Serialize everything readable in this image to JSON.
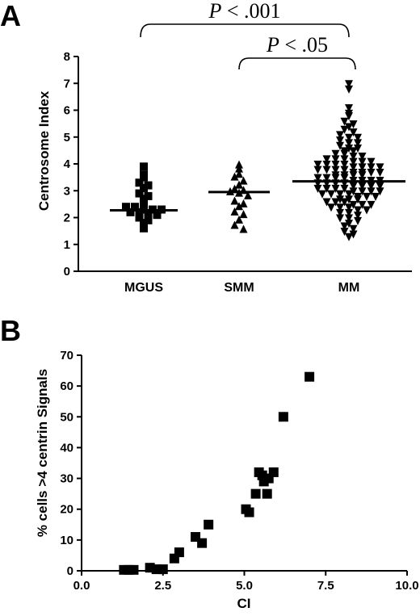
{
  "chart_data": [
    {
      "type": "scatter",
      "panel": "A",
      "xlabel": "",
      "ylabel": "Centrosome Index",
      "ylim": [
        0,
        8
      ],
      "yticks": [
        0,
        1,
        2,
        3,
        4,
        5,
        6,
        7,
        8
      ],
      "categories": [
        "MGUS",
        "SMM",
        "MM"
      ],
      "medians": [
        2.27,
        2.95,
        3.35
      ],
      "comparisons": [
        {
          "from": "MGUS",
          "to": "MM",
          "p_prefix": "P",
          "p_text": " < .001"
        },
        {
          "from": "SMM",
          "to": "MM",
          "p_prefix": "P",
          "p_text": " < .05"
        }
      ],
      "series": [
        {
          "category": "MGUS",
          "marker": "square",
          "values": [
            3.9,
            3.6,
            3.5,
            3.3,
            3.2,
            3.1,
            2.9,
            2.8,
            2.7,
            2.5,
            2.4,
            2.4,
            2.3,
            2.3,
            2.3,
            2.2,
            2.2,
            2.1,
            2.1,
            2.0,
            1.9,
            1.8,
            1.6
          ]
        },
        {
          "category": "SMM",
          "marker": "triangle-up",
          "values": [
            3.95,
            3.8,
            3.6,
            3.5,
            3.35,
            3.2,
            3.05,
            3.0,
            2.95,
            2.9,
            2.8,
            2.6,
            2.5,
            2.4,
            2.2,
            2.1,
            1.9,
            1.7,
            1.55
          ]
        },
        {
          "category": "MM",
          "marker": "triangle-down",
          "values": [
            7.0,
            6.8,
            6.1,
            5.9,
            5.8,
            5.6,
            5.5,
            5.4,
            5.3,
            5.2,
            5.1,
            5.0,
            5.0,
            4.9,
            4.8,
            4.8,
            4.7,
            4.6,
            4.6,
            4.5,
            4.5,
            4.4,
            4.4,
            4.3,
            4.3,
            4.2,
            4.2,
            4.2,
            4.1,
            4.1,
            4.1,
            4.0,
            4.0,
            4.0,
            4.0,
            3.9,
            3.9,
            3.9,
            3.9,
            3.8,
            3.8,
            3.8,
            3.8,
            3.7,
            3.7,
            3.7,
            3.7,
            3.6,
            3.6,
            3.6,
            3.6,
            3.5,
            3.5,
            3.5,
            3.5,
            3.4,
            3.4,
            3.4,
            3.4,
            3.3,
            3.3,
            3.3,
            3.3,
            3.2,
            3.2,
            3.2,
            3.2,
            3.1,
            3.1,
            3.1,
            3.1,
            3.0,
            3.0,
            3.0,
            3.0,
            2.9,
            2.9,
            2.9,
            2.9,
            2.8,
            2.8,
            2.8,
            2.7,
            2.7,
            2.7,
            2.6,
            2.6,
            2.6,
            2.5,
            2.5,
            2.5,
            2.4,
            2.4,
            2.4,
            2.3,
            2.3,
            2.2,
            2.2,
            2.1,
            2.0,
            2.0,
            1.9,
            1.8,
            1.7,
            1.6,
            1.5,
            1.4,
            1.3
          ]
        }
      ]
    },
    {
      "type": "scatter",
      "panel": "B",
      "xlabel": "CI",
      "ylabel": "% cells >4 centrin Signals",
      "xlim": [
        0,
        10
      ],
      "ylim": [
        0,
        70
      ],
      "xticks": [
        "0.0",
        "2.5",
        "5.0",
        "7.5",
        "10.0"
      ],
      "yticks": [
        0,
        10,
        20,
        30,
        40,
        50,
        60,
        70
      ],
      "marker": "square",
      "points": [
        {
          "x": 1.3,
          "y": 0.3
        },
        {
          "x": 1.45,
          "y": 0.3
        },
        {
          "x": 1.6,
          "y": 0.3
        },
        {
          "x": 2.1,
          "y": 1.0
        },
        {
          "x": 2.3,
          "y": 0.5
        },
        {
          "x": 2.5,
          "y": 0.5
        },
        {
          "x": 2.85,
          "y": 4.0
        },
        {
          "x": 3.0,
          "y": 6.0
        },
        {
          "x": 3.5,
          "y": 11.0
        },
        {
          "x": 3.7,
          "y": 9.0
        },
        {
          "x": 3.9,
          "y": 15.0
        },
        {
          "x": 5.05,
          "y": 20.0
        },
        {
          "x": 5.15,
          "y": 19.0
        },
        {
          "x": 5.35,
          "y": 25.0
        },
        {
          "x": 5.45,
          "y": 32.0
        },
        {
          "x": 5.6,
          "y": 29.0
        },
        {
          "x": 5.55,
          "y": 31.0
        },
        {
          "x": 5.75,
          "y": 30.0
        },
        {
          "x": 5.7,
          "y": 25.0
        },
        {
          "x": 5.9,
          "y": 32.0
        },
        {
          "x": 6.2,
          "y": 50.0
        },
        {
          "x": 7.0,
          "y": 63.0
        }
      ]
    }
  ],
  "labels": {
    "panel_a": "A",
    "panel_b": "B"
  }
}
